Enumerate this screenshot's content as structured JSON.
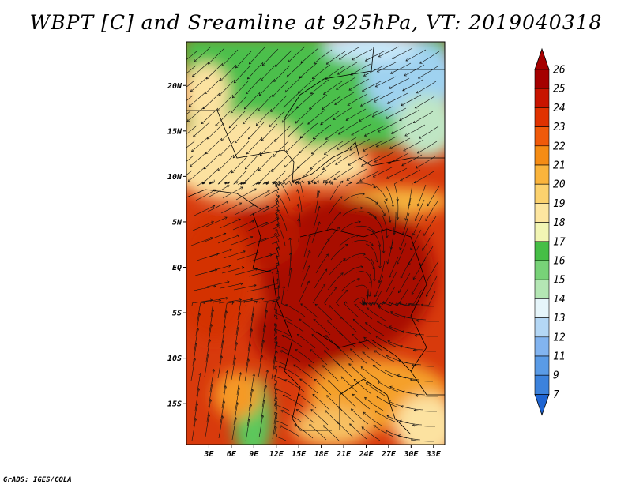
{
  "title": "WBPT [C] and Sreamline at 925hPa, VT: 2019040318",
  "credit": "GrADS: IGES/COLA",
  "map": {
    "lat_labels": [
      "20N",
      "15N",
      "10N",
      "5N",
      "EQ",
      "5S",
      "10S",
      "15S"
    ],
    "lat_values": [
      20,
      15,
      10,
      5,
      0,
      -5,
      -10,
      -15
    ],
    "lon_labels": [
      "3E",
      "6E",
      "9E",
      "12E",
      "15E",
      "18E",
      "21E",
      "24E",
      "27E",
      "30E",
      "33E"
    ],
    "lon_values": [
      3,
      6,
      9,
      12,
      15,
      18,
      21,
      24,
      27,
      30,
      33
    ],
    "lon_range": [
      0,
      34.5
    ],
    "lat_range": [
      -19.5,
      24.8
    ]
  },
  "colorbar": {
    "levels": [
      "26",
      "25",
      "24",
      "23",
      "22",
      "21",
      "20",
      "19",
      "18",
      "17",
      "16",
      "15",
      "14",
      "13",
      "12",
      "11",
      "9",
      "7"
    ],
    "colors": [
      "#a50000",
      "#c81400",
      "#e03200",
      "#f05a0a",
      "#f58c14",
      "#fab43c",
      "#fcd26e",
      "#fde6a0",
      "#f2f5b4",
      "#46be46",
      "#78d278",
      "#b4e6b4",
      "#e6f5fa",
      "#b4d7f5",
      "#82b4f0",
      "#5a9be6",
      "#3c82dc",
      "#1e64d2"
    ],
    "top_color": "#a50000",
    "bottom_color": "#1e64d2"
  }
}
